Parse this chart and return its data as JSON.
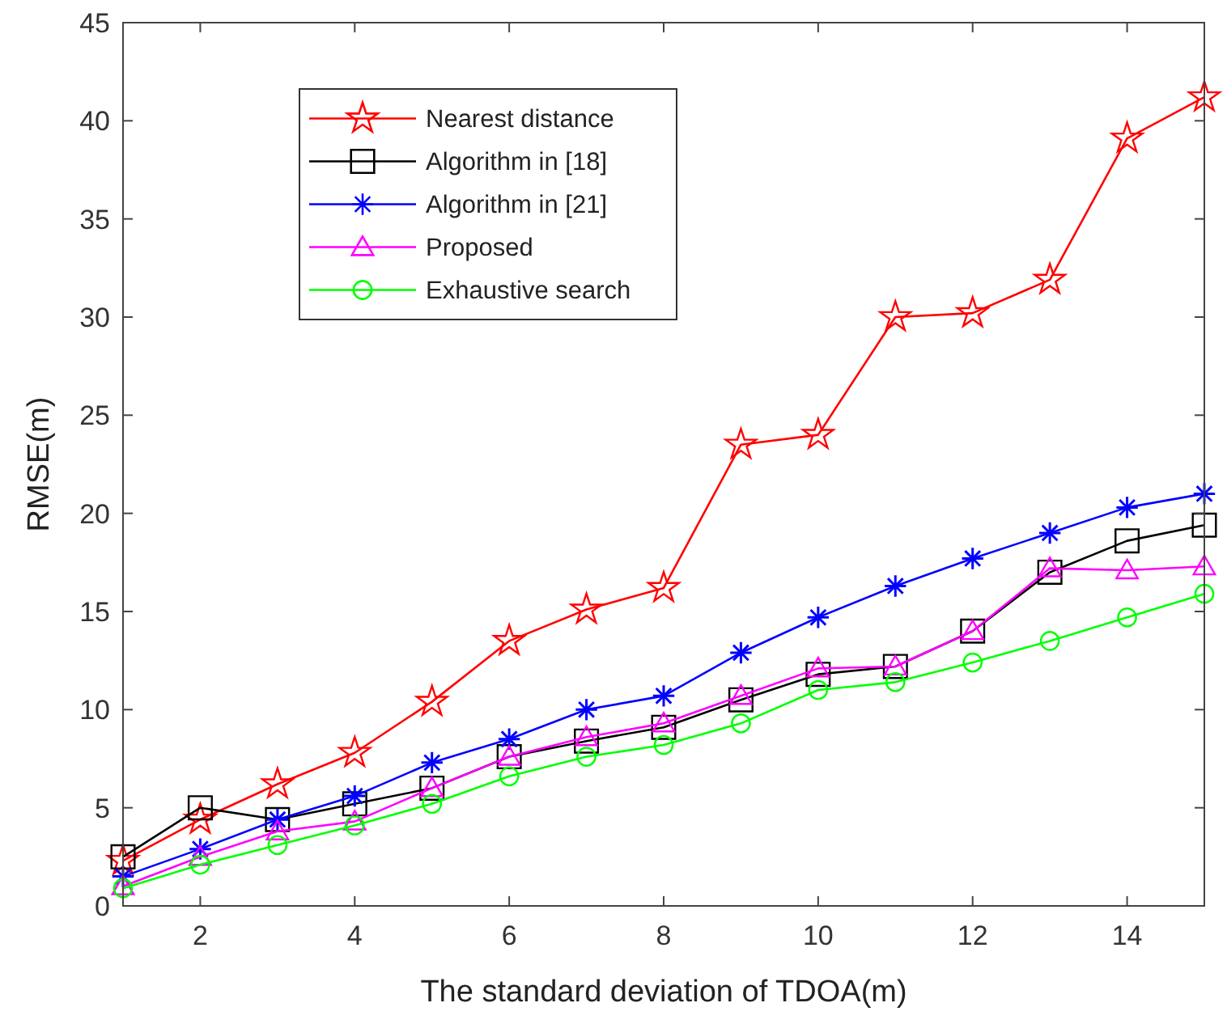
{
  "chart_data": {
    "type": "line",
    "xlabel": "The standard deviation of TDOA(m)",
    "ylabel": "RMSE(m)",
    "x": [
      1,
      2,
      3,
      4,
      5,
      6,
      7,
      8,
      9,
      10,
      11,
      12,
      13,
      14,
      15
    ],
    "xlim": [
      1,
      15
    ],
    "xticks": [
      2,
      4,
      6,
      8,
      10,
      12,
      14
    ],
    "ylim": [
      0,
      45
    ],
    "yticks": [
      0,
      5,
      10,
      15,
      20,
      25,
      30,
      35,
      40,
      45
    ],
    "grid": false,
    "legend": "top left",
    "line_style": "solid",
    "series": [
      {
        "name": "Nearest distance",
        "color": "#ff0000",
        "marker": "star",
        "values": [
          2.3,
          4.4,
          6.2,
          7.8,
          10.4,
          13.5,
          15.1,
          16.2,
          23.5,
          24.0,
          30.0,
          30.2,
          31.9,
          39.1,
          41.2
        ]
      },
      {
        "name": "Algorithm in [18]",
        "color": "#000000",
        "marker": "square",
        "values": [
          2.5,
          5.0,
          4.4,
          5.2,
          6.0,
          7.6,
          8.4,
          9.1,
          10.5,
          11.8,
          12.2,
          14.0,
          17.0,
          18.6,
          19.4
        ]
      },
      {
        "name": "Algorithm in [21]",
        "color": "#0000ff",
        "marker": "cross",
        "values": [
          1.5,
          2.9,
          4.4,
          5.6,
          7.3,
          8.5,
          10.0,
          10.7,
          12.9,
          14.7,
          16.3,
          17.7,
          19.0,
          20.3,
          21.0
        ]
      },
      {
        "name": "Proposed",
        "color": "#ff00ff",
        "marker": "triangle",
        "values": [
          1.0,
          2.5,
          3.8,
          4.3,
          6.0,
          7.6,
          8.6,
          9.3,
          10.7,
          12.1,
          12.2,
          14.0,
          17.2,
          17.1,
          17.3
        ]
      },
      {
        "name": "Exhaustive search",
        "color": "#00ff00",
        "marker": "circle",
        "values": [
          0.9,
          2.1,
          3.1,
          4.1,
          5.2,
          6.6,
          7.6,
          8.2,
          9.3,
          11.0,
          11.4,
          12.4,
          13.5,
          14.7,
          15.9
        ]
      }
    ]
  }
}
